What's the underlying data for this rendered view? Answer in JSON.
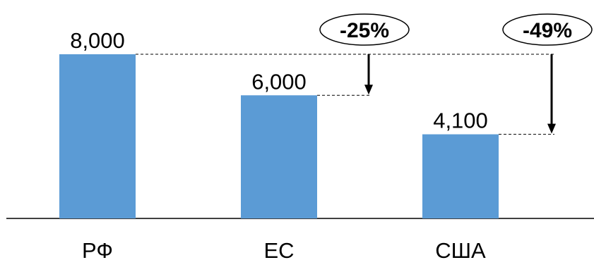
{
  "chart_data": {
    "type": "bar",
    "categories": [
      "РФ",
      "ЕС",
      "США"
    ],
    "values": [
      8000,
      6000,
      4100
    ],
    "value_labels": [
      "8,000",
      "6,000",
      "4,100"
    ],
    "ylim": [
      0,
      8000
    ],
    "grid": false,
    "bar_color": "#5b9bd5",
    "annotations": [
      {
        "from_category": "РФ",
        "to_category": "ЕС",
        "label": "-25%"
      },
      {
        "from_category": "РФ",
        "to_category": "США",
        "label": "-49%"
      }
    ]
  }
}
